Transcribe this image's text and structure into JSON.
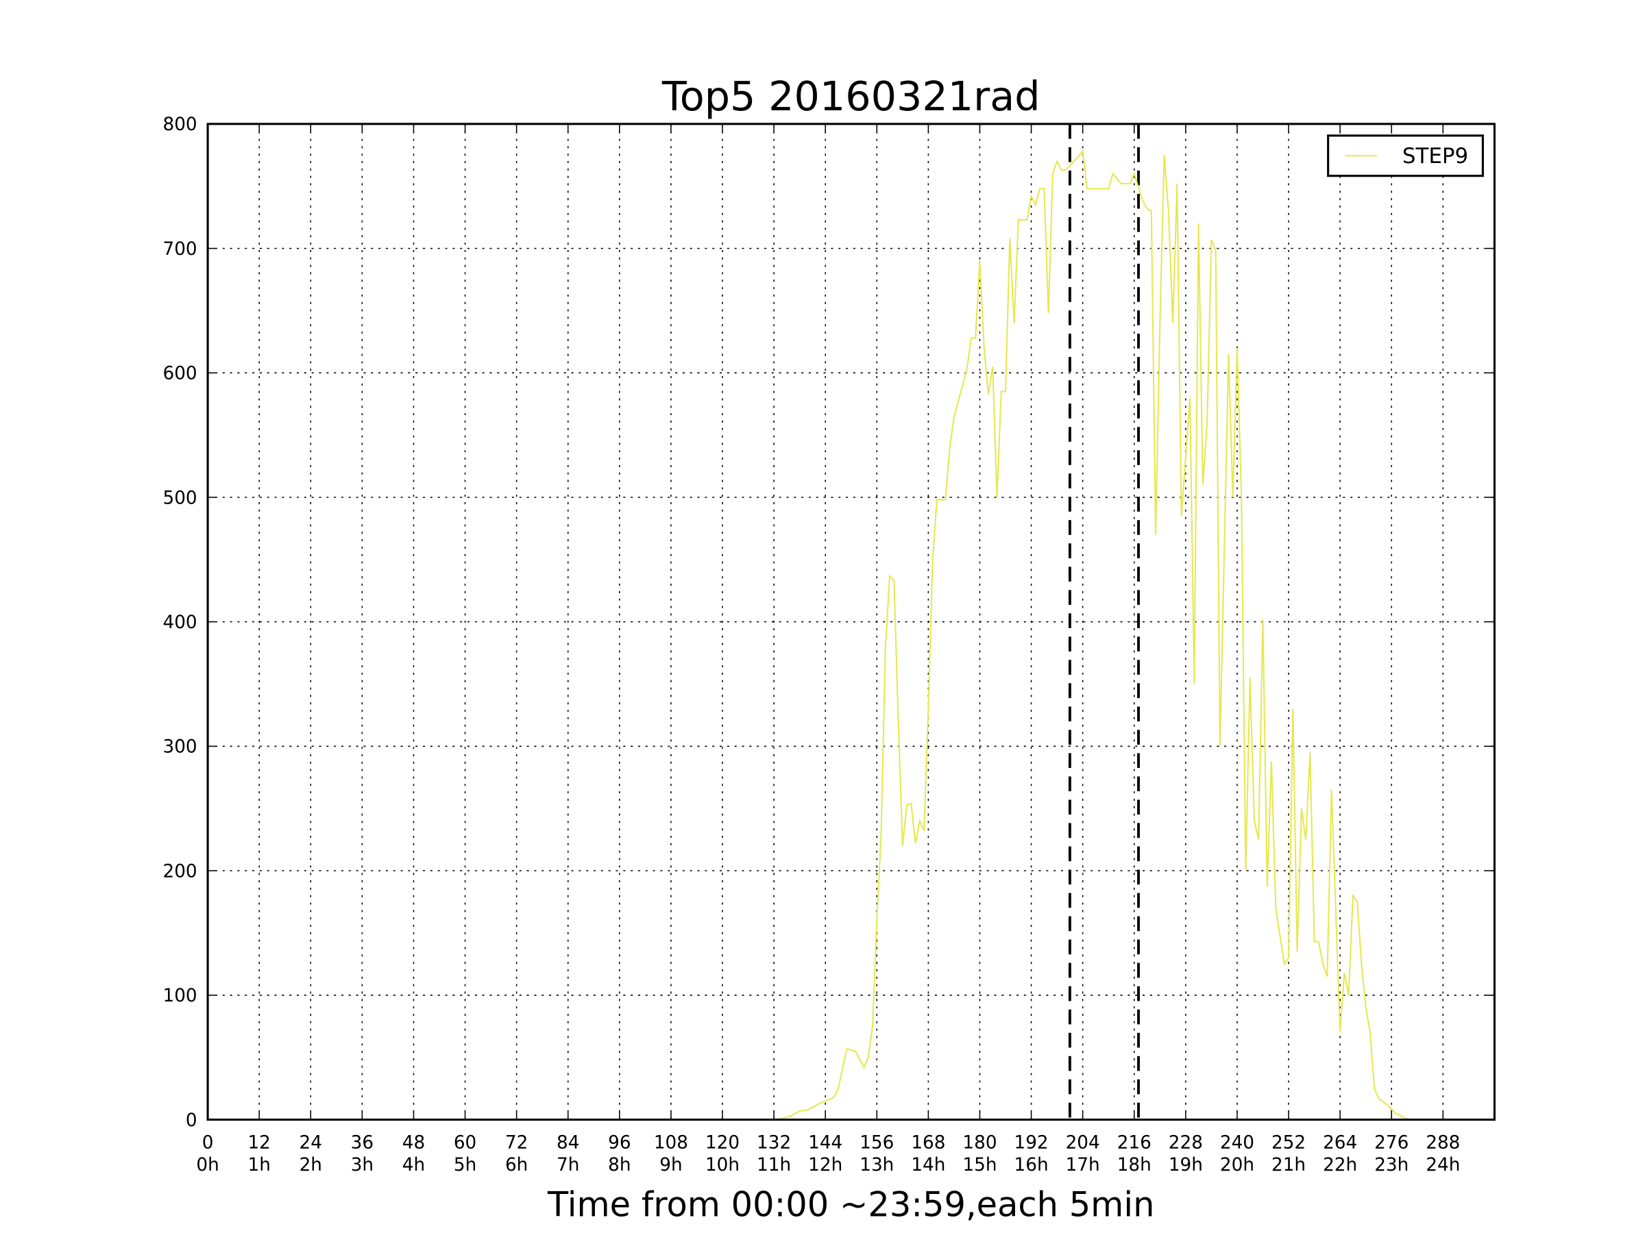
{
  "chart_data": {
    "type": "line",
    "title": "Top5 20160321rad",
    "xlabel": "Time from 00:00 ~23:59,each 5min",
    "xlim": [
      0,
      300
    ],
    "ylim": [
      0,
      800
    ],
    "xticks": [
      0,
      12,
      24,
      36,
      48,
      60,
      72,
      84,
      96,
      108,
      120,
      132,
      144,
      156,
      168,
      180,
      192,
      204,
      216,
      228,
      240,
      252,
      264,
      276,
      288
    ],
    "xtick_hours": [
      "0h",
      "1h",
      "2h",
      "3h",
      "4h",
      "5h",
      "6h",
      "7h",
      "8h",
      "9h",
      "10h",
      "11h",
      "12h",
      "13h",
      "14h",
      "15h",
      "16h",
      "17h",
      "18h",
      "19h",
      "20h",
      "21h",
      "22h",
      "23h",
      "24h"
    ],
    "yticks": [
      0,
      100,
      200,
      300,
      400,
      500,
      600,
      700,
      800
    ],
    "grid": true,
    "legend": "upper right",
    "vlines": [
      201,
      217
    ],
    "series": [
      {
        "name": "STEP9",
        "color": "#e5e84c",
        "x": [
          132,
          134,
          136,
          138,
          140,
          142,
          144,
          146,
          147,
          149,
          151,
          153,
          154,
          155,
          156,
          157,
          158,
          159,
          160,
          161,
          162,
          163,
          164,
          165,
          166,
          167,
          168,
          169,
          170,
          172,
          173,
          174,
          176,
          177,
          178,
          179,
          180,
          181,
          182,
          183,
          184,
          185,
          186,
          187,
          188,
          189,
          191,
          192,
          193,
          194,
          195,
          196,
          197,
          198,
          199,
          200,
          202,
          204,
          205,
          210,
          211,
          213,
          215,
          216,
          218,
          219,
          220,
          221,
          222,
          223,
          224,
          225,
          226,
          227,
          229,
          230,
          231,
          232,
          233,
          234,
          235,
          236,
          238,
          239,
          240,
          241,
          242,
          243,
          244,
          245,
          246,
          247,
          248,
          249,
          251,
          252,
          253,
          254,
          255,
          256,
          257,
          258,
          259,
          260,
          261,
          262,
          264,
          265,
          266,
          267,
          268,
          269,
          270,
          271,
          272,
          273,
          275,
          277,
          280
        ],
        "values": [
          0,
          1,
          3,
          7,
          8,
          12,
          15,
          18,
          25,
          57,
          55,
          42,
          50,
          75,
          160,
          230,
          380,
          437,
          433,
          320,
          220,
          253,
          254,
          222,
          240,
          232,
          330,
          450,
          498,
          498,
          540,
          565,
          590,
          603,
          628,
          628,
          690,
          620,
          583,
          605,
          500,
          585,
          585,
          708,
          640,
          723,
          723,
          742,
          735,
          748,
          748,
          648,
          760,
          770,
          763,
          763,
          770,
          778,
          748,
          748,
          760,
          752,
          752,
          760,
          738,
          732,
          730,
          470,
          640,
          775,
          730,
          640,
          752,
          485,
          580,
          350,
          720,
          510,
          560,
          707,
          698,
          300,
          615,
          500,
          620,
          500,
          200,
          355,
          240,
          225,
          402,
          187,
          288,
          170,
          125,
          130,
          330,
          135,
          250,
          225,
          295,
          143,
          143,
          125,
          115,
          265,
          70,
          118,
          100,
          180,
          175,
          125,
          90,
          70,
          25,
          17,
          12,
          5,
          0
        ]
      }
    ]
  }
}
